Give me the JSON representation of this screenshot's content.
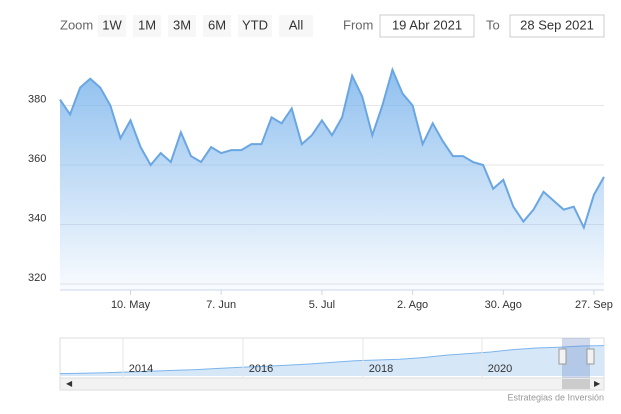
{
  "chart_data": {
    "type": "area",
    "zoom_label": "Zoom",
    "zoom_buttons": [
      "1W",
      "1M",
      "3M",
      "6M",
      "YTD",
      "All"
    ],
    "from_label": "From",
    "from_value": "19 Abr 2021",
    "to_label": "To",
    "to_value": "28 Sep 2021",
    "categories": [
      null,
      null,
      null,
      null,
      null,
      null,
      null,
      "10. May",
      null,
      null,
      null,
      null,
      null,
      null,
      null,
      null,
      "7. Jun",
      null,
      null,
      null,
      null,
      null,
      null,
      null,
      null,
      null,
      "5. Jul",
      null,
      null,
      null,
      null,
      null,
      null,
      null,
      null,
      "2. Ago",
      null,
      null,
      null,
      null,
      null,
      null,
      null,
      null,
      "30. Ago",
      null,
      null,
      null,
      null,
      null,
      null,
      null,
      null,
      "27. Sep",
      null
    ],
    "series": [
      {
        "color": "#6aa6e2",
        "values": [
          382,
          377,
          386,
          389,
          386,
          380,
          369,
          375,
          366,
          360,
          364,
          361,
          371,
          363,
          361,
          366,
          364,
          365,
          365,
          367,
          367,
          376,
          374,
          379,
          367,
          370,
          375,
          370,
          376,
          390,
          383,
          370,
          380,
          392,
          384,
          380,
          367,
          374,
          368,
          363,
          363,
          361,
          360,
          352,
          355,
          346,
          341,
          345,
          351,
          348,
          345,
          346,
          339,
          350,
          356
        ]
      }
    ],
    "ylim": [
      318,
      402
    ],
    "yticks": [
      320,
      340,
      360,
      380
    ],
    "grid": true,
    "navigator": {
      "years": [
        "2014",
        "2016",
        "2018",
        "2020"
      ],
      "values": [
        30,
        35,
        40,
        50,
        60,
        70,
        80,
        95,
        110,
        120,
        135,
        150,
        170,
        190,
        200,
        210,
        230,
        260,
        280,
        300,
        330,
        350,
        360,
        375,
        380
      ],
      "ylim": [
        0,
        450
      ]
    },
    "credit": "Estrategias de Inversión"
  }
}
